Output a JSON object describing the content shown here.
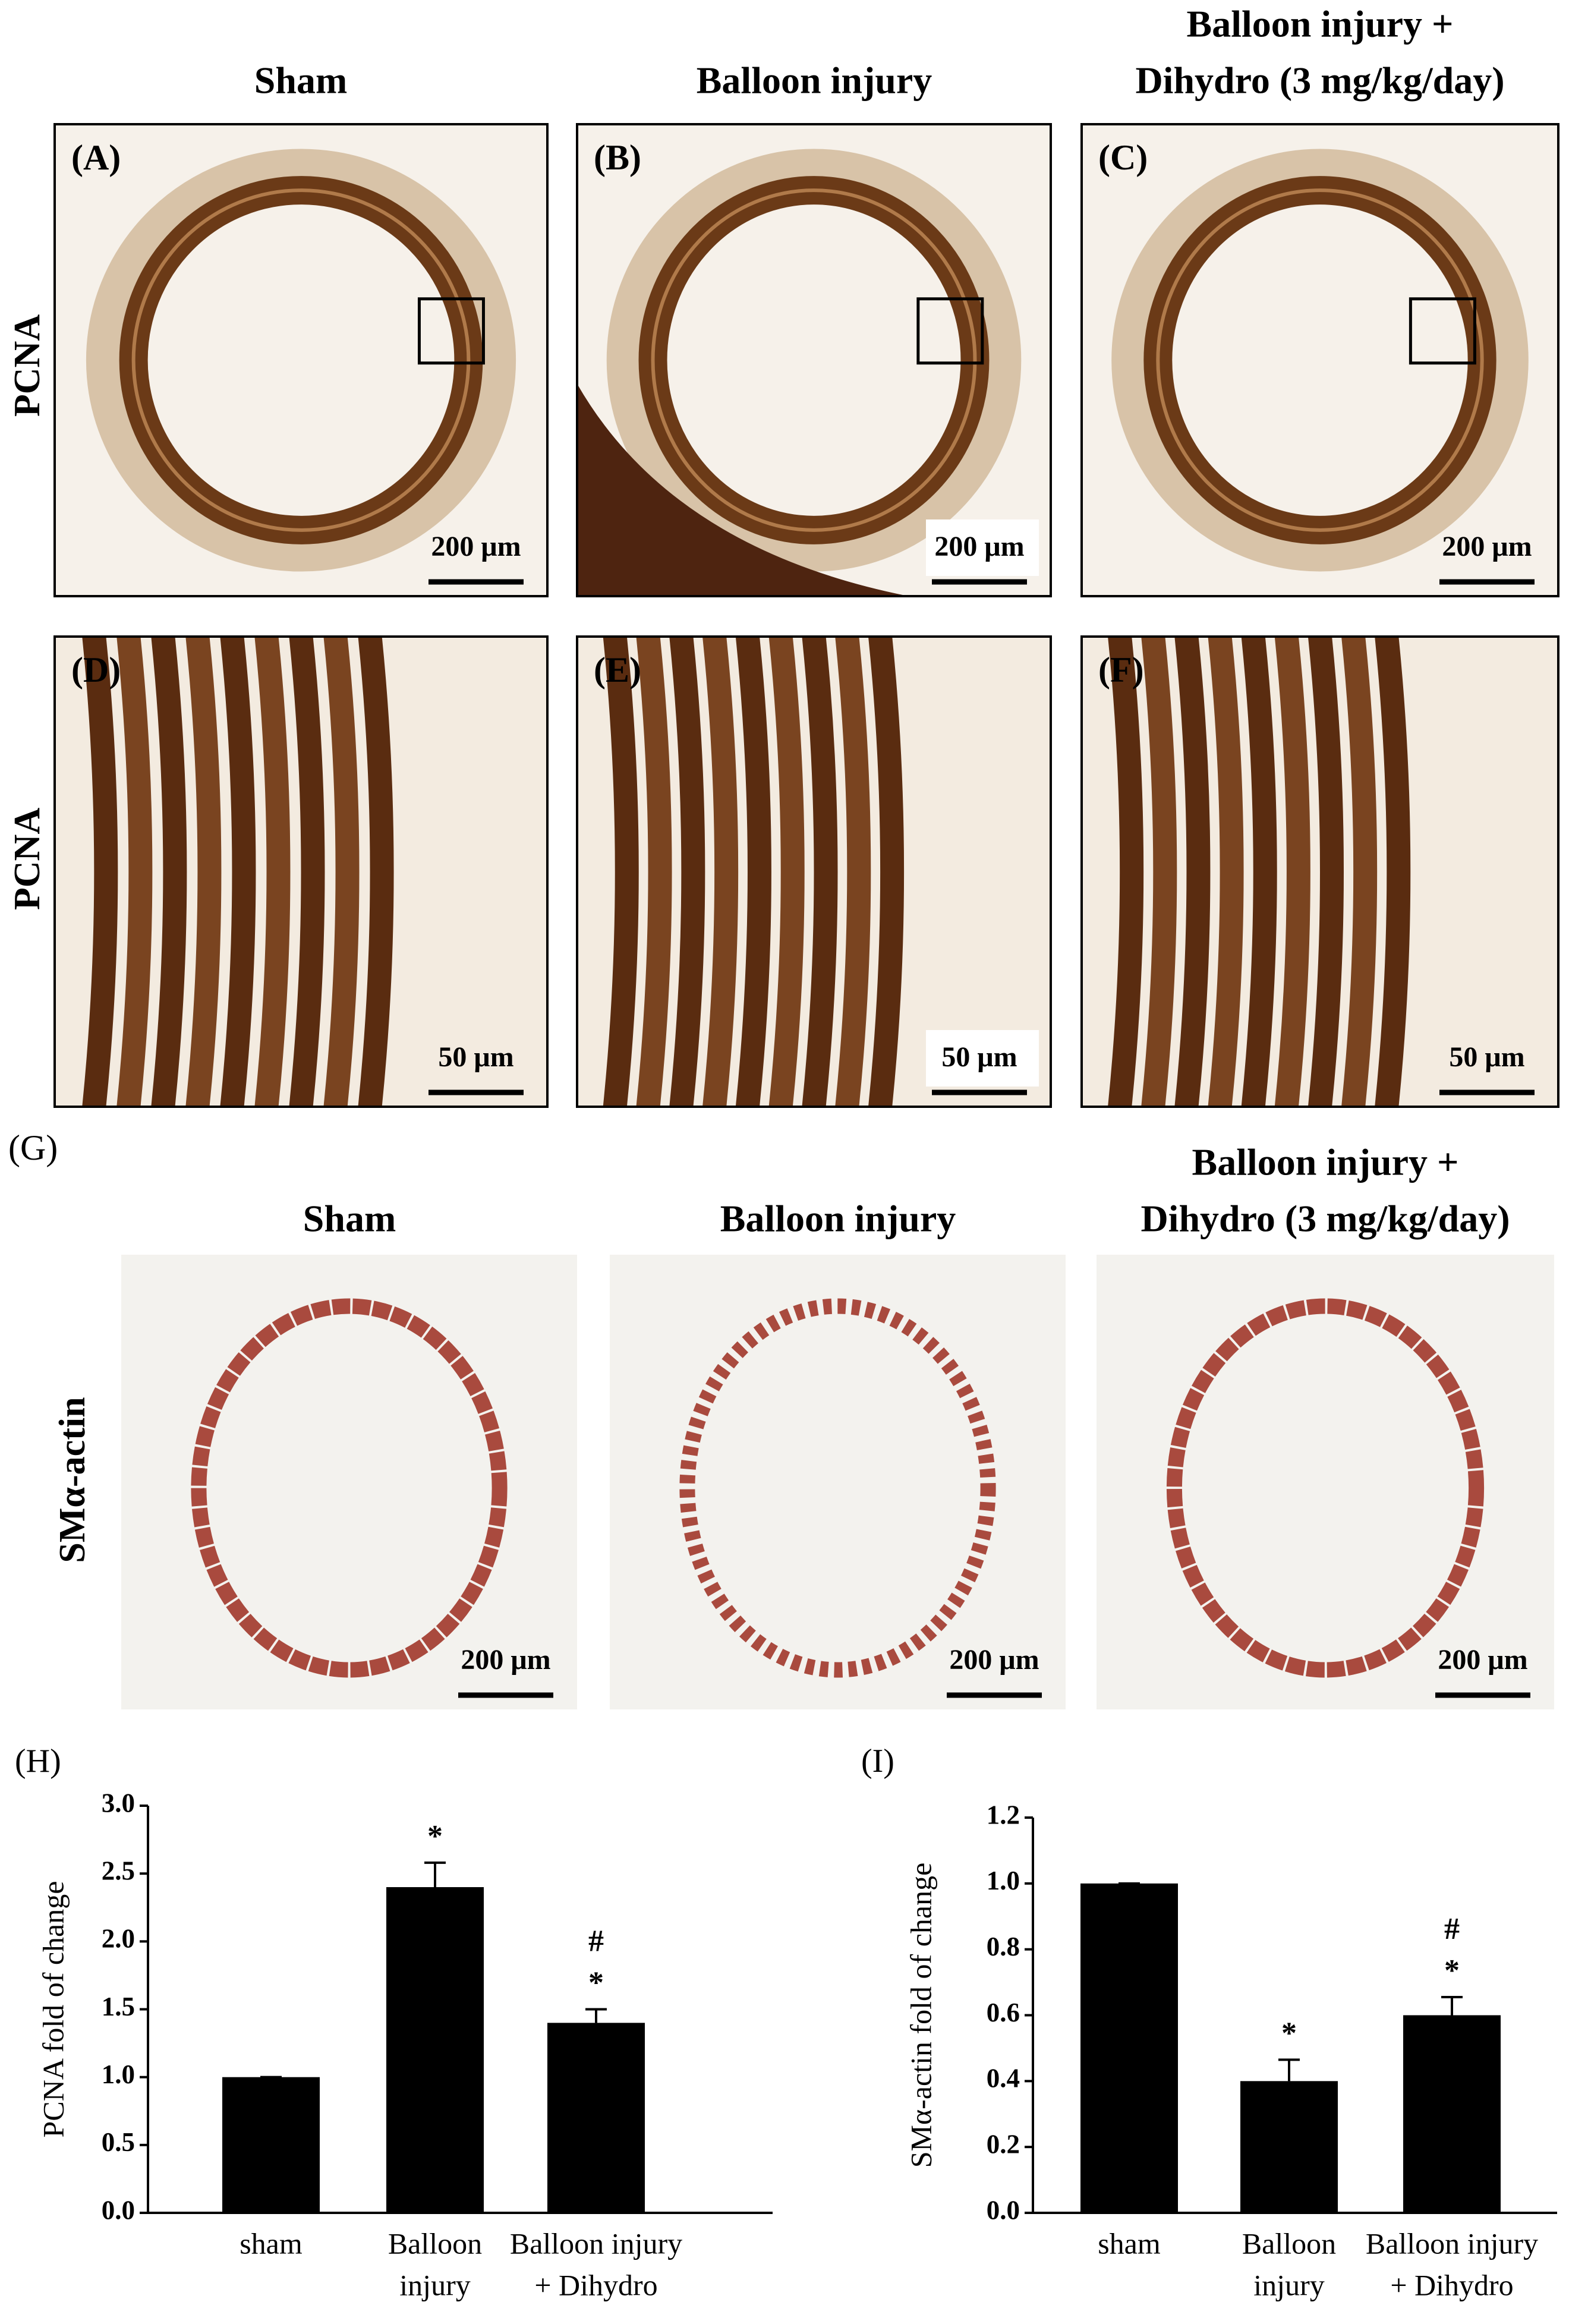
{
  "figure": {
    "columns": [
      [
        "Sham"
      ],
      [
        "Balloon injury"
      ],
      [
        "Balloon injury +",
        "Dihydro (3 mg/kg/day)"
      ]
    ],
    "rows": [
      "PCNA",
      "PCNA",
      "SMα-actin"
    ],
    "panels": [
      "(A)",
      "(B)",
      "(C)",
      "(D)",
      "(E)",
      "(F)"
    ],
    "panel_g": "(G)",
    "scale_bars": [
      "200 μm",
      "200 μm",
      "200 μm",
      "50 μm",
      "50 μm",
      "50 μm",
      "200 μm",
      "200 μm",
      "200 μm"
    ]
  },
  "chart_data": [
    {
      "type": "bar",
      "panel": "(H)",
      "ylabel": "PCNA fold of change",
      "categories": [
        [
          "sham"
        ],
        [
          "Balloon",
          "injury"
        ],
        [
          "Balloon injury",
          "+ Dihydro"
        ]
      ],
      "values": [
        1.0,
        2.4,
        1.4
      ],
      "errors": [
        0,
        0.18,
        0.1
      ],
      "markers": [
        null,
        [
          "*"
        ],
        [
          "#",
          "*"
        ]
      ],
      "color": "#000000",
      "ylim": [
        0,
        3
      ],
      "yticks": [
        {
          "value": 0,
          "label": "0.0"
        },
        {
          "value": 0.5,
          "label": "0.5"
        },
        {
          "value": 1,
          "label": "1.0"
        },
        {
          "value": 1.5,
          "label": "1.5"
        },
        {
          "value": 2,
          "label": "2.0"
        },
        {
          "value": 2.5,
          "label": "2.5"
        },
        {
          "value": 3,
          "label": "3.0"
        }
      ]
    },
    {
      "type": "bar",
      "panel": "(I)",
      "ylabel": "SMα-actin fold of change",
      "categories": [
        [
          "sham"
        ],
        [
          "Balloon",
          "injury"
        ],
        [
          "Balloon injury",
          "+ Dihydro"
        ]
      ],
      "values": [
        1.0,
        0.4,
        0.6
      ],
      "errors": [
        0,
        0.065,
        0.055
      ],
      "markers": [
        null,
        [
          "*"
        ],
        [
          "#",
          "*"
        ]
      ],
      "color": "#000000",
      "ylim": [
        0,
        1.2
      ],
      "yticks": [
        {
          "value": 0,
          "label": "0.0"
        },
        {
          "value": 0.2,
          "label": "0.2"
        },
        {
          "value": 0.4,
          "label": "0.4"
        },
        {
          "value": 0.6,
          "label": "0.6"
        },
        {
          "value": 0.8,
          "label": "0.8"
        },
        {
          "value": 1,
          "label": "1.0"
        },
        {
          "value": 1.2,
          "label": "1.2"
        }
      ]
    }
  ]
}
